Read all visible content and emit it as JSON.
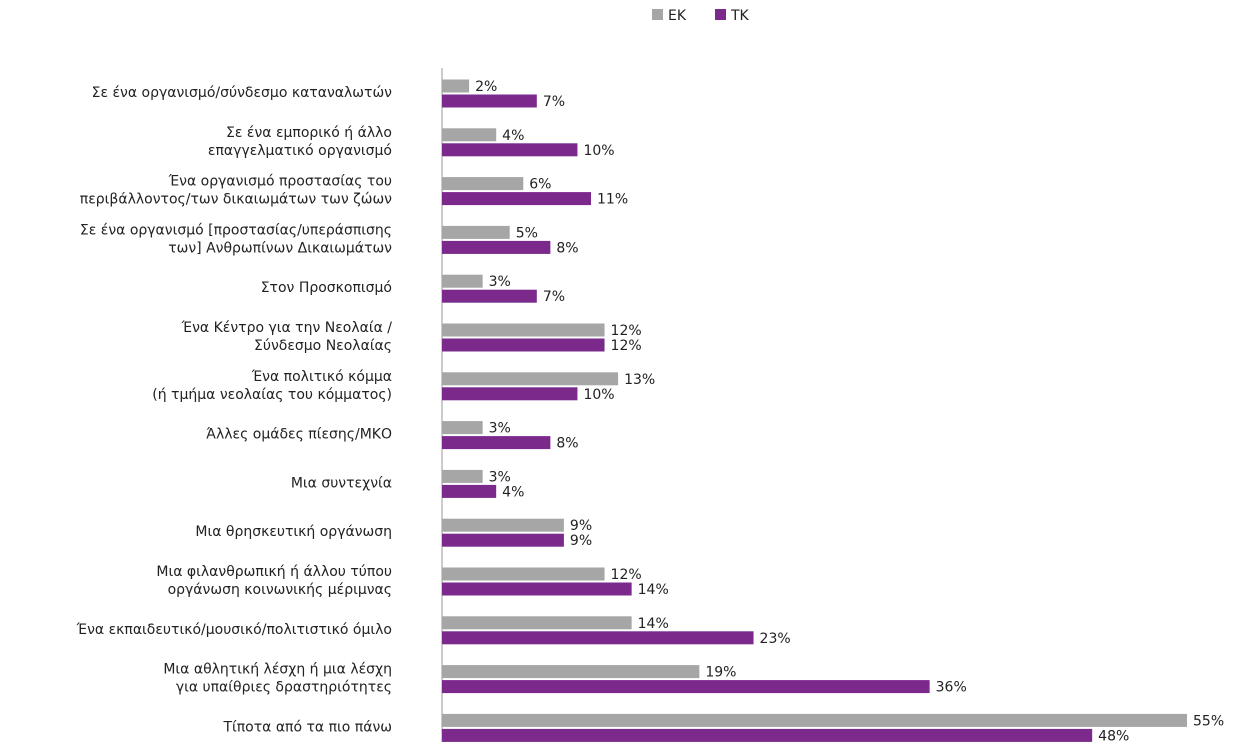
{
  "chart_data": {
    "type": "bar",
    "orientation": "horizontal",
    "categories": [
      [
        "Σε ένα οργανισμό/σύνδεσμο καταναλωτών"
      ],
      [
        "Σε ένα εμπορικό ή άλλο",
        "επαγγελματικό οργανισμό"
      ],
      [
        "Ένα οργανισμό προστασίας του",
        "περιβάλλοντος/των δικαιωμάτων των ζώων"
      ],
      [
        "Σε ένα οργανισμό [προστασίας/υπεράσπισης",
        "των] Ανθρωπίνων Δικαιωμάτων"
      ],
      [
        "Στον Προσκοπισμό"
      ],
      [
        "Ένα Κέντρο για την Νεολαία /",
        "Σύνδεσμο Νεολαίας"
      ],
      [
        "Ένα πολιτικό κόμμα",
        "(ή τμήμα νεολαίας του κόμματος)"
      ],
      [
        "Άλλες ομάδες πίεσης/ΜΚΟ"
      ],
      [
        "Μια συντεχνία"
      ],
      [
        "Μια θρησκευτική οργάνωση"
      ],
      [
        "Μια φιλανθρωπική ή άλλου τύπου",
        "οργάνωση κοινωνικής μέριμνας"
      ],
      [
        "Ένα εκπαιδευτικό/μουσικό/πολιτιστικό όμιλο"
      ],
      [
        "Μια αθλητική λέσχη ή μια λέσχη",
        "για υπαίθριες δραστηριότητες"
      ],
      [
        "Τίποτα από τα πιο πάνω"
      ]
    ],
    "series": [
      {
        "name": "ΕΚ",
        "color": "#a6a6a6",
        "values": [
          2,
          4,
          6,
          5,
          3,
          12,
          13,
          3,
          3,
          9,
          12,
          14,
          19,
          55
        ],
        "value_labels": [
          "2%",
          "4%",
          "6%",
          "5%",
          "3%",
          "12%",
          "13%",
          "3%",
          "3%",
          "9%",
          "12%",
          "14%",
          "19%",
          "55%"
        ]
      },
      {
        "name": "ΤΚ",
        "color": "#7b2a8c",
        "values": [
          7,
          10,
          11,
          8,
          7,
          12,
          10,
          8,
          4,
          9,
          14,
          23,
          36,
          48
        ],
        "value_labels": [
          "7%",
          "10%",
          "11%",
          "8%",
          "7%",
          "12%",
          "10%",
          "8%",
          "4%",
          "9%",
          "14%",
          "23%",
          "36%",
          "48%"
        ]
      }
    ],
    "xlim": [
      0,
      55
    ],
    "legend": "top"
  }
}
